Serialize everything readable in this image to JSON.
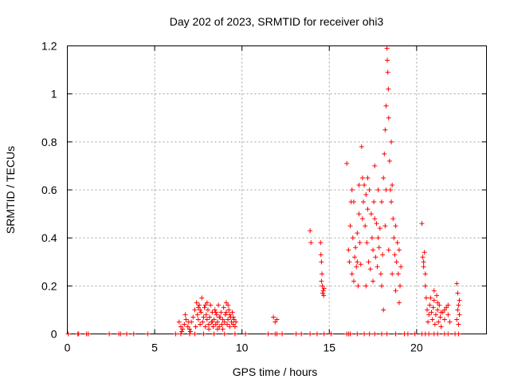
{
  "chart_data": {
    "type": "scatter",
    "title": "Day 202 of 2023, SRMTID for receiver ohi3",
    "xlabel": "GPS time / hours",
    "ylabel": "SRMTID / TECUs",
    "xlim": [
      0,
      24
    ],
    "ylim": [
      0,
      1.2
    ],
    "xticks": [
      0,
      5,
      10,
      15,
      20
    ],
    "yticks": [
      0,
      0.2,
      0.4,
      0.6,
      0.8,
      1,
      1.2
    ],
    "xtick_labels": [
      "0",
      "5",
      "10",
      "15",
      "20"
    ],
    "ytick_labels": [
      "0",
      "0.2",
      "0.4",
      "0.6",
      "0.8",
      "1",
      "1.2"
    ],
    "grid": true,
    "marker": "+",
    "color": "#ff0000",
    "series": [
      {
        "name": "SRMTID",
        "points": [
          [
            0.05,
            0
          ],
          [
            0.6,
            0
          ],
          [
            0.65,
            0
          ],
          [
            1.1,
            0
          ],
          [
            1.2,
            0
          ],
          [
            2.4,
            0
          ],
          [
            2.95,
            0
          ],
          [
            3.05,
            0
          ],
          [
            3.4,
            0
          ],
          [
            3.8,
            0
          ],
          [
            4.6,
            0
          ],
          [
            6.2,
            0
          ],
          [
            6.5,
            0
          ],
          [
            7.0,
            0
          ],
          [
            7.3,
            0
          ],
          [
            7.8,
            0
          ],
          [
            8.4,
            0
          ],
          [
            9.0,
            0
          ],
          [
            9.6,
            0
          ],
          [
            10.2,
            0
          ],
          [
            11.5,
            0
          ],
          [
            11.9,
            0
          ],
          [
            12.0,
            0
          ],
          [
            12.3,
            0
          ],
          [
            13.1,
            0
          ],
          [
            13.4,
            0
          ],
          [
            13.9,
            0
          ],
          [
            14.3,
            0
          ],
          [
            14.7,
            0
          ],
          [
            15.1,
            0
          ],
          [
            16.0,
            0
          ],
          [
            16.1,
            0
          ],
          [
            16.2,
            0
          ],
          [
            16.6,
            0
          ],
          [
            17.0,
            0
          ],
          [
            17.3,
            0
          ],
          [
            17.6,
            0
          ],
          [
            18.0,
            0
          ],
          [
            18.3,
            0
          ],
          [
            18.8,
            0
          ],
          [
            19.3,
            0
          ],
          [
            19.5,
            0
          ],
          [
            19.9,
            0
          ],
          [
            20.3,
            0
          ],
          [
            20.5,
            0
          ],
          [
            20.7,
            0
          ],
          [
            21.0,
            0
          ],
          [
            21.2,
            0
          ],
          [
            21.6,
            0
          ],
          [
            21.8,
            0
          ],
          [
            22.2,
            0
          ],
          [
            22.4,
            0
          ],
          [
            6.4,
            0.05
          ],
          [
            6.5,
            0.03
          ],
          [
            6.6,
            0.02
          ],
          [
            6.7,
            0.04
          ],
          [
            6.8,
            0.06
          ],
          [
            6.9,
            0.03
          ],
          [
            7.0,
            0.02
          ],
          [
            7.1,
            0.05
          ],
          [
            7.2,
            0.07
          ],
          [
            6.55,
            0.01
          ],
          [
            6.75,
            0.08
          ],
          [
            6.95,
            0.05
          ],
          [
            7.05,
            0.01
          ],
          [
            7.3,
            0.1
          ],
          [
            7.4,
            0.13
          ],
          [
            7.45,
            0.08
          ],
          [
            7.5,
            0.06
          ],
          [
            7.55,
            0.12
          ],
          [
            7.6,
            0.04
          ],
          [
            7.65,
            0.09
          ],
          [
            7.7,
            0.15
          ],
          [
            7.75,
            0.05
          ],
          [
            7.8,
            0.07
          ],
          [
            7.85,
            0.11
          ],
          [
            7.9,
            0.03
          ],
          [
            7.95,
            0.08
          ],
          [
            8.0,
            0.06
          ],
          [
            8.05,
            0.1
          ],
          [
            8.1,
            0.04
          ],
          [
            8.15,
            0.07
          ],
          [
            8.2,
            0.12
          ],
          [
            8.25,
            0.05
          ],
          [
            8.3,
            0.09
          ],
          [
            8.35,
            0.03
          ],
          [
            8.4,
            0.06
          ],
          [
            8.45,
            0.1
          ],
          [
            8.5,
            0.04
          ],
          [
            8.55,
            0.08
          ],
          [
            8.6,
            0.05
          ],
          [
            8.65,
            0.12
          ],
          [
            8.7,
            0.03
          ],
          [
            8.75,
            0.07
          ],
          [
            8.8,
            0.09
          ],
          [
            8.85,
            0.04
          ],
          [
            8.9,
            0.06
          ],
          [
            8.95,
            0.11
          ],
          [
            9.0,
            0.05
          ],
          [
            9.05,
            0.08
          ],
          [
            9.1,
            0.13
          ],
          [
            9.15,
            0.04
          ],
          [
            9.2,
            0.06
          ],
          [
            9.25,
            0.1
          ],
          [
            9.3,
            0.03
          ],
          [
            9.35,
            0.07
          ],
          [
            9.4,
            0.05
          ],
          [
            9.45,
            0.09
          ],
          [
            9.5,
            0.04
          ],
          [
            9.55,
            0.06
          ],
          [
            9.6,
            0.03
          ],
          [
            9.65,
            0.05
          ],
          [
            7.35,
            0.03
          ],
          [
            7.6,
            0.1
          ],
          [
            7.9,
            0.12
          ],
          [
            8.1,
            0.02
          ],
          [
            8.3,
            0.05
          ],
          [
            8.5,
            0.09
          ],
          [
            8.7,
            0.07
          ],
          [
            8.9,
            0.02
          ],
          [
            9.1,
            0.09
          ],
          [
            9.3,
            0.08
          ],
          [
            9.5,
            0.07
          ],
          [
            7.5,
            0.11
          ],
          [
            8.0,
            0.13
          ],
          [
            8.6,
            0.02
          ],
          [
            9.2,
            0.12
          ],
          [
            11.8,
            0.07
          ],
          [
            11.9,
            0.05
          ],
          [
            12.0,
            0.06
          ],
          [
            13.9,
            0.43
          ],
          [
            13.95,
            0.38
          ],
          [
            14.5,
            0.38
          ],
          [
            14.52,
            0.33
          ],
          [
            14.55,
            0.3
          ],
          [
            14.58,
            0.25
          ],
          [
            14.6,
            0.2
          ],
          [
            14.62,
            0.17
          ],
          [
            14.65,
            0.18
          ],
          [
            14.68,
            0.16
          ],
          [
            14.7,
            0.19
          ],
          [
            14.55,
            0.22
          ],
          [
            16.0,
            0.71
          ],
          [
            16.1,
            0.35
          ],
          [
            16.15,
            0.3
          ],
          [
            16.2,
            0.45
          ],
          [
            16.25,
            0.55
          ],
          [
            16.3,
            0.6
          ],
          [
            16.3,
            0.25
          ],
          [
            16.35,
            0.4
          ],
          [
            16.4,
            0.22
          ],
          [
            16.45,
            0.32
          ],
          [
            16.5,
            0.36
          ],
          [
            16.55,
            0.28
          ],
          [
            16.6,
            0.42
          ],
          [
            16.65,
            0.2
          ],
          [
            16.7,
            0.5
          ],
          [
            16.75,
            0.38
          ],
          [
            16.8,
            0.29
          ],
          [
            16.85,
            0.78
          ],
          [
            16.9,
            0.65
          ],
          [
            16.95,
            0.55
          ],
          [
            17.0,
            0.62
          ],
          [
            17.05,
            0.45
          ],
          [
            17.1,
            0.58
          ],
          [
            17.15,
            0.38
          ],
          [
            17.2,
            0.52
          ],
          [
            17.25,
            0.3
          ],
          [
            17.3,
            0.6
          ],
          [
            17.35,
            0.27
          ],
          [
            17.4,
            0.5
          ],
          [
            17.45,
            0.4
          ],
          [
            17.5,
            0.22
          ],
          [
            17.55,
            0.55
          ],
          [
            17.6,
            0.48
          ],
          [
            17.65,
            0.32
          ],
          [
            17.7,
            0.46
          ],
          [
            17.75,
            0.28
          ],
          [
            17.8,
            0.6
          ],
          [
            17.85,
            0.36
          ],
          [
            17.9,
            0.44
          ],
          [
            17.95,
            0.25
          ],
          [
            18.0,
            0.55
          ],
          [
            18.05,
            0.33
          ],
          [
            18.1,
            0.65
          ],
          [
            18.15,
            0.75
          ],
          [
            18.2,
            0.85
          ],
          [
            18.25,
            0.95
          ],
          [
            18.3,
            1.19
          ],
          [
            18.32,
            1.14
          ],
          [
            18.35,
            1.09
          ],
          [
            18.38,
            1.02
          ],
          [
            18.4,
            0.9
          ],
          [
            18.45,
            0.72
          ],
          [
            18.5,
            0.6
          ],
          [
            18.55,
            0.55
          ],
          [
            18.6,
            0.62
          ],
          [
            18.65,
            0.48
          ],
          [
            18.7,
            0.4
          ],
          [
            18.75,
            0.33
          ],
          [
            18.8,
            0.45
          ],
          [
            18.85,
            0.3
          ],
          [
            18.9,
            0.38
          ],
          [
            18.95,
            0.25
          ],
          [
            19.0,
            0.35
          ],
          [
            19.05,
            0.2
          ],
          [
            19.1,
            0.28
          ],
          [
            16.4,
            0.55
          ],
          [
            16.6,
            0.3
          ],
          [
            16.9,
            0.48
          ],
          [
            17.2,
            0.65
          ],
          [
            17.5,
            0.35
          ],
          [
            17.8,
            0.4
          ],
          [
            18.0,
            0.2
          ],
          [
            18.2,
            0.45
          ],
          [
            18.4,
            0.35
          ],
          [
            18.6,
            0.25
          ],
          [
            18.8,
            0.18
          ],
          [
            19.0,
            0.13
          ],
          [
            17.1,
            0.2
          ],
          [
            16.7,
            0.62
          ],
          [
            17.6,
            0.7
          ],
          [
            18.1,
            0.1
          ],
          [
            18.55,
            0.8
          ],
          [
            18.25,
            0.6
          ],
          [
            20.3,
            0.46
          ],
          [
            20.35,
            0.32
          ],
          [
            20.4,
            0.28
          ],
          [
            20.45,
            0.34
          ],
          [
            20.5,
            0.2
          ],
          [
            20.55,
            0.15
          ],
          [
            20.6,
            0.1
          ],
          [
            20.65,
            0.05
          ],
          [
            20.7,
            0.08
          ],
          [
            20.75,
            0.12
          ],
          [
            20.8,
            0.15
          ],
          [
            20.85,
            0.09
          ],
          [
            20.9,
            0.06
          ],
          [
            20.95,
            0.11
          ],
          [
            21.0,
            0.14
          ],
          [
            21.05,
            0.04
          ],
          [
            21.1,
            0.08
          ],
          [
            21.15,
            0.16
          ],
          [
            21.2,
            0.1
          ],
          [
            21.25,
            0.05
          ],
          [
            21.3,
            0.12
          ],
          [
            21.35,
            0.07
          ],
          [
            21.4,
            0.03
          ],
          [
            21.5,
            0.09
          ],
          [
            21.6,
            0.06
          ],
          [
            21.7,
            0.11
          ],
          [
            21.8,
            0.08
          ],
          [
            21.9,
            0.05
          ],
          [
            20.4,
            0.3
          ],
          [
            20.5,
            0.25
          ],
          [
            21.0,
            0.18
          ],
          [
            21.2,
            0.13
          ],
          [
            21.4,
            0.09
          ],
          [
            21.6,
            0.1
          ],
          [
            21.8,
            0.12
          ],
          [
            22.3,
            0.21
          ],
          [
            22.35,
            0.17
          ],
          [
            22.4,
            0.12
          ],
          [
            22.45,
            0.08
          ],
          [
            22.3,
            0.06
          ],
          [
            22.35,
            0.1
          ],
          [
            22.4,
            0.04
          ],
          [
            22.45,
            0.14
          ]
        ]
      }
    ]
  }
}
